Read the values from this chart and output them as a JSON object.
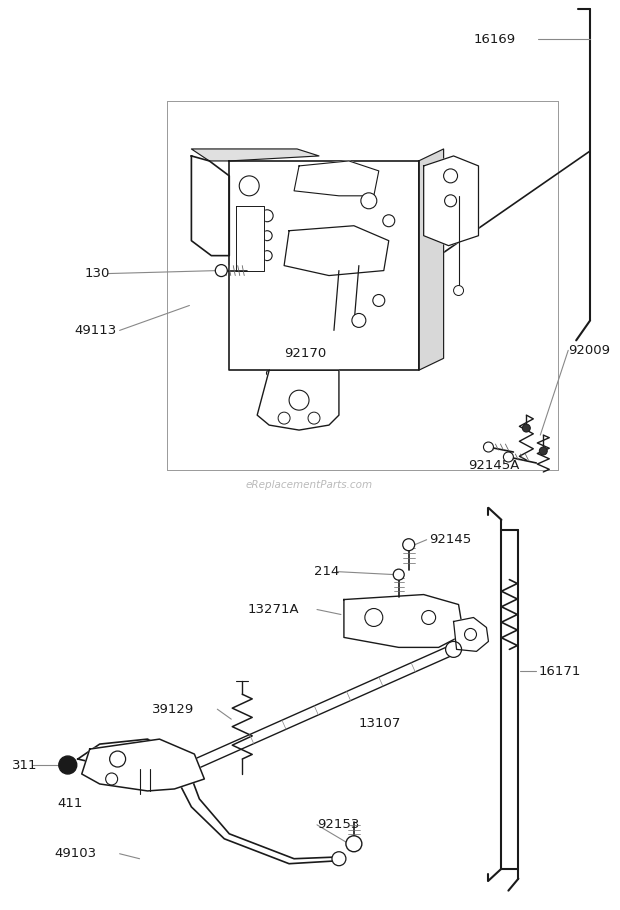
{
  "bg_color": "#ffffff",
  "watermark": "eReplacementParts.com",
  "watermark_color": "#cccccc",
  "lc": "#1a1a1a",
  "tc": "#1a1a1a",
  "fs": 9.5,
  "fig_w": 6.2,
  "fig_h": 9.1
}
